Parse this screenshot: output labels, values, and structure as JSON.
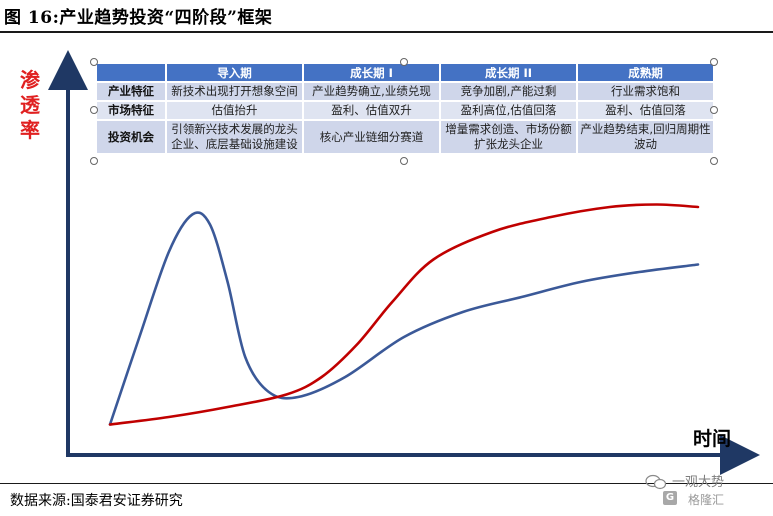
{
  "figure": {
    "title": "图 16:产业趋势投资“四阶段”框架",
    "source": "数据来源:国泰君安证券研究",
    "watermark": "一观大势",
    "watermark_sub": "格隆汇"
  },
  "table": {
    "headers": [
      "",
      "导入期",
      "成长期 I",
      "成长期 II",
      "成熟期"
    ],
    "rows": [
      {
        "label": "产业特征",
        "cells": [
          "新技术出现打开想象空间",
          "产业趋势确立,业绩兑现",
          "竞争加剧,产能过剩",
          "行业需求饱和"
        ]
      },
      {
        "label": "市场特征",
        "cells": [
          "估值抬升",
          "盈利、估值双升",
          "盈利高位,估值回落",
          "盈利、估值回落"
        ]
      },
      {
        "label": "投资机会",
        "cells": [
          "引领新兴技术发展的龙头企业、底层基础设施建设",
          "核心产业链细分赛道",
          "增量需求创造、市场份额扩张龙头企业",
          "产业趋势结束,回归周期性波动"
        ]
      }
    ]
  },
  "chart_data": {
    "type": "line",
    "xlabel": "时间",
    "ylabel": "渗透率",
    "axis_ticks": "none",
    "grid": false,
    "x_range": [
      0,
      1
    ],
    "y_range": [
      0,
      1
    ],
    "series": [
      {
        "color": "#3b5998",
        "points": [
          [
            0.0,
            0.03
          ],
          [
            0.05,
            0.38
          ],
          [
            0.1,
            0.72
          ],
          [
            0.14,
            0.87
          ],
          [
            0.17,
            0.83
          ],
          [
            0.2,
            0.6
          ],
          [
            0.23,
            0.3
          ],
          [
            0.27,
            0.16
          ],
          [
            0.32,
            0.14
          ],
          [
            0.4,
            0.22
          ],
          [
            0.5,
            0.38
          ],
          [
            0.6,
            0.48
          ],
          [
            0.7,
            0.54
          ],
          [
            0.8,
            0.6
          ],
          [
            0.9,
            0.64
          ],
          [
            1.0,
            0.67
          ]
        ]
      },
      {
        "color": "#c00000",
        "points": [
          [
            0.0,
            0.03
          ],
          [
            0.1,
            0.06
          ],
          [
            0.2,
            0.1
          ],
          [
            0.3,
            0.15
          ],
          [
            0.36,
            0.22
          ],
          [
            0.42,
            0.35
          ],
          [
            0.48,
            0.52
          ],
          [
            0.55,
            0.69
          ],
          [
            0.65,
            0.8
          ],
          [
            0.75,
            0.86
          ],
          [
            0.85,
            0.9
          ],
          [
            0.93,
            0.91
          ],
          [
            1.0,
            0.9
          ]
        ]
      }
    ]
  }
}
